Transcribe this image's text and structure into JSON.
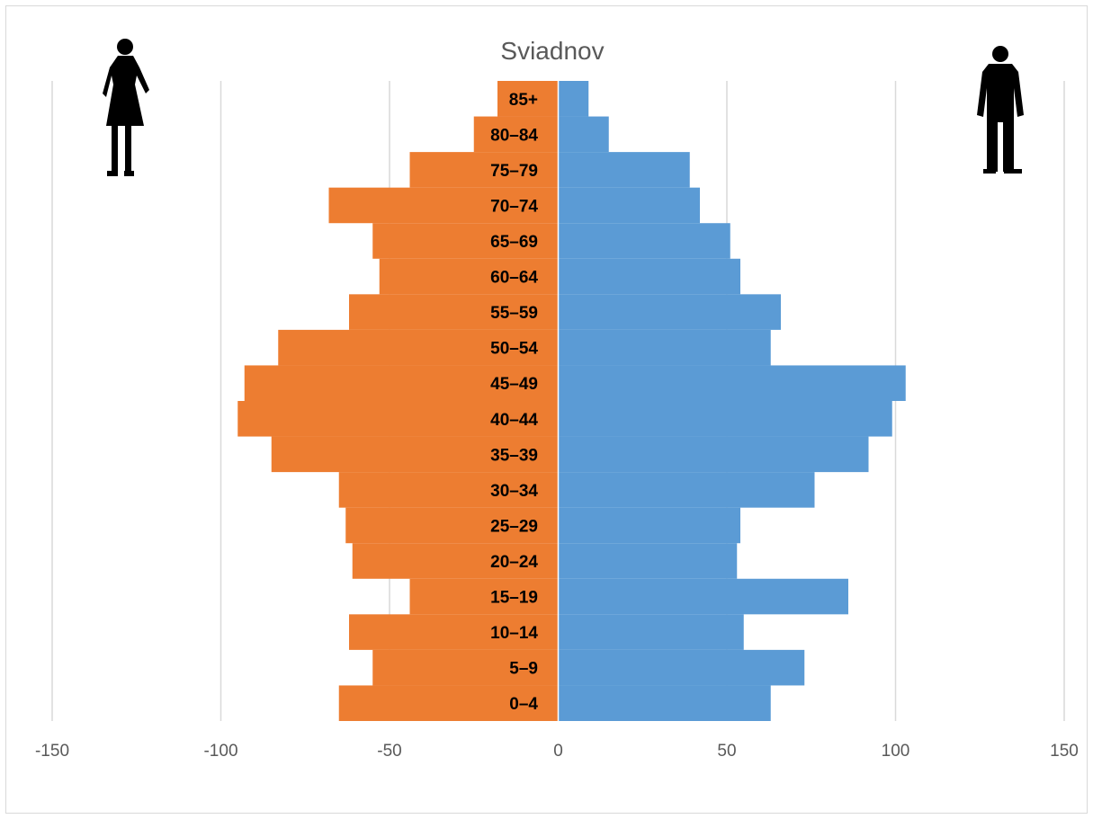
{
  "chart_data": {
    "type": "bar",
    "orientation": "horizontal",
    "title": "Sviadnov",
    "categories": [
      "0–4",
      "5–9",
      "10–14",
      "15–19",
      "20–24",
      "25–29",
      "30–34",
      "35–39",
      "40–44",
      "45–49",
      "50–54",
      "55–59",
      "60–64",
      "65–69",
      "70–74",
      "75–79",
      "80–84",
      "85+"
    ],
    "series": [
      {
        "color": "#ED7D31",
        "values": [
          -65,
          -55,
          -62,
          -44,
          -61,
          -63,
          -65,
          -85,
          -95,
          -93,
          -83,
          -62,
          -53,
          -55,
          -68,
          -44,
          -25,
          -18
        ]
      },
      {
        "color": "#5B9BD5",
        "values": [
          63,
          73,
          55,
          86,
          53,
          54,
          76,
          92,
          99,
          103,
          63,
          66,
          54,
          51,
          42,
          39,
          15,
          9
        ]
      }
    ],
    "xlim": [
      -150,
      150
    ],
    "xticks": [
      -150,
      -100,
      -50,
      0,
      50,
      100,
      150
    ],
    "grid": true,
    "icons": [
      "woman-silhouette-icon",
      "man-silhouette-icon"
    ]
  }
}
